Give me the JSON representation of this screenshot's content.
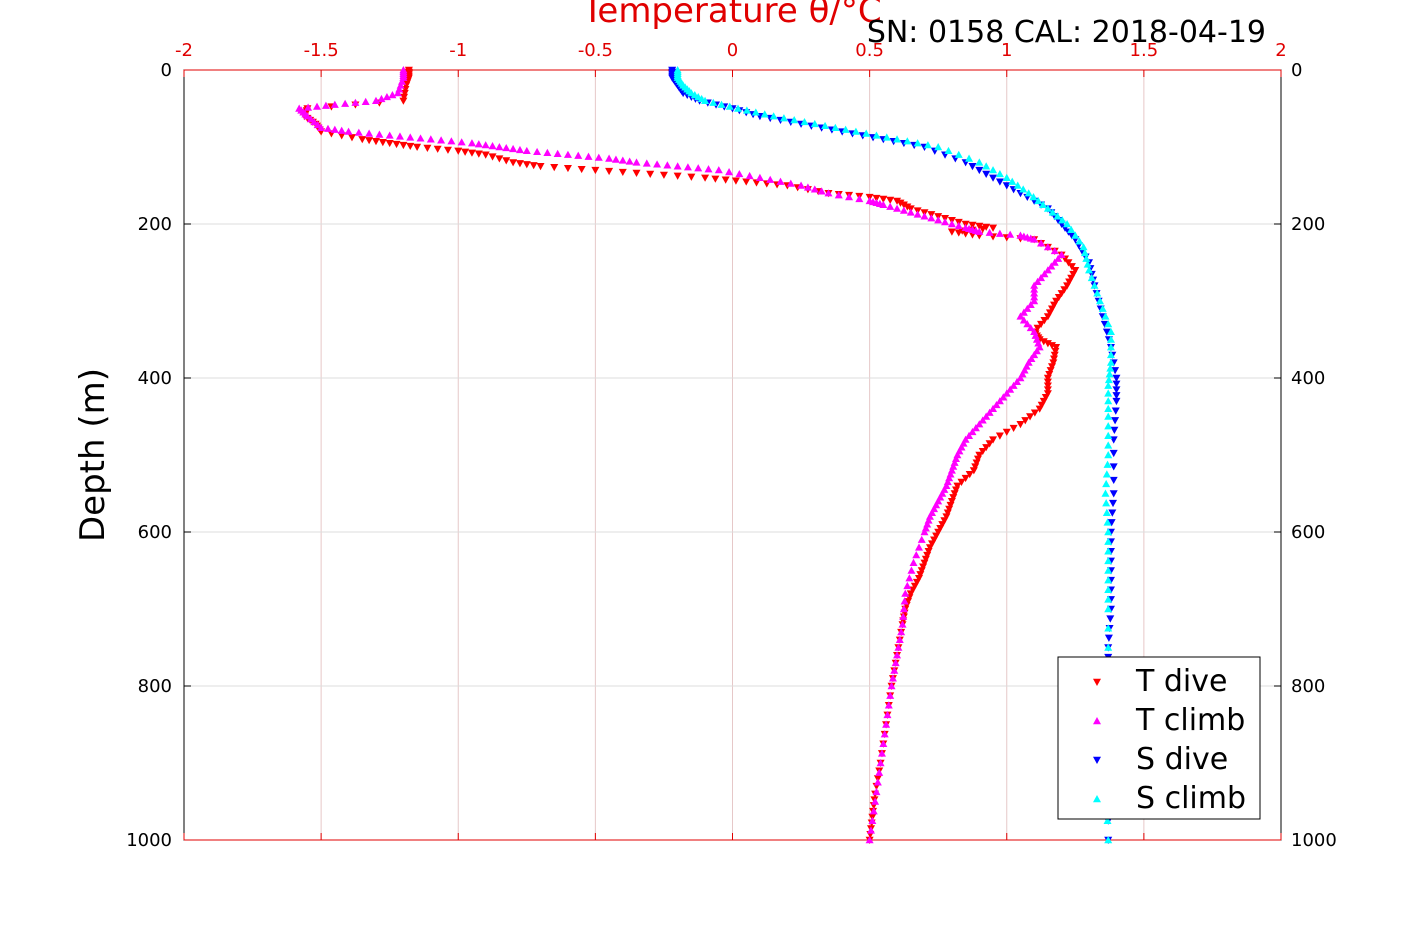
{
  "chart_data": {
    "type": "scatter",
    "title": "Temperature θ/°C",
    "annotation": "SN: 0158  CAL: 2018-04-19",
    "xlabel": "Temperature θ/°C",
    "ylabel": "Depth (m)",
    "xlim": [
      -2,
      2
    ],
    "ylim": [
      0,
      1000
    ],
    "y_reversed": true,
    "grid": true,
    "legend_position": "bottom-right",
    "x_ticks": [
      "-2",
      "-1.5",
      "-1",
      "-0.5",
      "0",
      "0.5",
      "1",
      "1.5",
      "2"
    ],
    "y_ticks": [
      "0",
      "200",
      "400",
      "600",
      "800",
      "1000"
    ],
    "series": [
      {
        "name": "T dive",
        "marker": "triangle-down",
        "color": "#ff0000",
        "x": [
          -1.18,
          -1.18,
          -1.19,
          -1.2,
          -1.55,
          -1.56,
          -1.52,
          -1.5,
          -1.35,
          -1.25,
          -1.15,
          -1.0,
          -0.9,
          -0.8,
          -0.7,
          -0.5,
          -0.3,
          -0.1,
          0.05,
          0.2,
          0.35,
          0.5,
          0.6,
          0.65,
          0.75,
          0.85,
          0.95,
          0.8,
          0.9,
          1.1,
          1.2,
          1.25,
          1.22,
          1.18,
          1.15,
          1.1,
          1.12,
          1.18,
          1.17,
          1.15,
          1.15,
          1.12,
          1.05,
          0.95,
          0.9,
          0.88,
          0.82,
          0.8,
          0.78,
          0.75,
          0.72,
          0.7,
          0.68,
          0.65,
          0.63,
          0.62,
          0.6,
          0.58,
          0.56,
          0.54,
          0.52,
          0.51,
          0.5
        ],
        "y": [
          0,
          10,
          20,
          40,
          50,
          60,
          70,
          80,
          90,
          95,
          100,
          105,
          110,
          120,
          125,
          130,
          135,
          140,
          145,
          150,
          160,
          165,
          170,
          180,
          190,
          200,
          205,
          210,
          215,
          220,
          240,
          260,
          280,
          300,
          320,
          340,
          350,
          360,
          380,
          400,
          420,
          440,
          460,
          480,
          500,
          520,
          540,
          560,
          580,
          600,
          620,
          640,
          660,
          680,
          700,
          720,
          760,
          800,
          850,
          900,
          940,
          970,
          1000
        ]
      },
      {
        "name": "T climb",
        "marker": "triangle-up",
        "color": "#ff00ff",
        "x": [
          -1.2,
          -1.2,
          -1.22,
          -1.3,
          -1.45,
          -1.58,
          -1.55,
          -1.5,
          -1.4,
          -1.25,
          -1.1,
          -0.95,
          -0.85,
          -0.75,
          -0.6,
          -0.45,
          -0.35,
          -0.2,
          -0.05,
          0.1,
          0.25,
          0.35,
          0.5,
          0.55,
          0.65,
          0.75,
          0.85,
          0.9,
          1.05,
          1.1,
          1.2,
          1.15,
          1.1,
          1.1,
          1.05,
          1.1,
          1.12,
          1.08,
          1.05,
          1.0,
          0.95,
          0.9,
          0.85,
          0.82,
          0.8,
          0.78,
          0.75,
          0.72,
          0.7,
          0.66,
          0.63,
          0.62,
          0.6,
          0.58,
          0.56,
          0.54,
          0.52,
          0.5
        ],
        "y": [
          0,
          10,
          30,
          40,
          45,
          50,
          60,
          75,
          80,
          85,
          90,
          95,
          100,
          105,
          110,
          115,
          120,
          125,
          130,
          140,
          150,
          160,
          170,
          175,
          185,
          195,
          205,
          210,
          215,
          220,
          240,
          260,
          280,
          300,
          320,
          340,
          360,
          380,
          400,
          420,
          440,
          460,
          480,
          500,
          520,
          540,
          560,
          580,
          600,
          640,
          680,
          720,
          760,
          800,
          850,
          900,
          950,
          1000
        ]
      },
      {
        "name": "S dive",
        "marker": "triangle-down",
        "color": "#0000ff",
        "x": [
          -0.22,
          -0.22,
          -0.2,
          -0.18,
          -0.12,
          0.0,
          0.1,
          0.25,
          0.4,
          0.55,
          0.7,
          0.85,
          0.95,
          1.05,
          1.15,
          1.2,
          1.25,
          1.3,
          1.32,
          1.35,
          1.38,
          1.4,
          1.4,
          1.39,
          1.39,
          1.38,
          1.38,
          1.38,
          1.37,
          1.37,
          1.37,
          1.37
        ],
        "y": [
          0,
          10,
          20,
          30,
          40,
          50,
          60,
          70,
          80,
          90,
          100,
          120,
          140,
          160,
          180,
          200,
          220,
          250,
          280,
          320,
          360,
          400,
          430,
          480,
          550,
          600,
          650,
          700,
          750,
          800,
          900,
          1000
        ]
      },
      {
        "name": "S climb",
        "marker": "triangle-up",
        "color": "#00ffff",
        "x": [
          -0.2,
          -0.2,
          -0.18,
          -0.15,
          -0.1,
          0.02,
          0.15,
          0.3,
          0.45,
          0.6,
          0.75,
          0.9,
          1.0,
          1.08,
          1.15,
          1.22,
          1.28,
          1.3,
          1.34,
          1.38,
          1.38,
          1.37,
          1.37,
          1.37,
          1.36,
          1.37,
          1.37,
          1.37,
          1.37,
          1.36,
          1.37
        ],
        "y": [
          0,
          10,
          20,
          30,
          40,
          50,
          60,
          70,
          80,
          90,
          100,
          120,
          140,
          160,
          180,
          200,
          230,
          260,
          300,
          340,
          380,
          410,
          450,
          500,
          550,
          600,
          650,
          700,
          800,
          900,
          1000
        ]
      }
    ]
  }
}
